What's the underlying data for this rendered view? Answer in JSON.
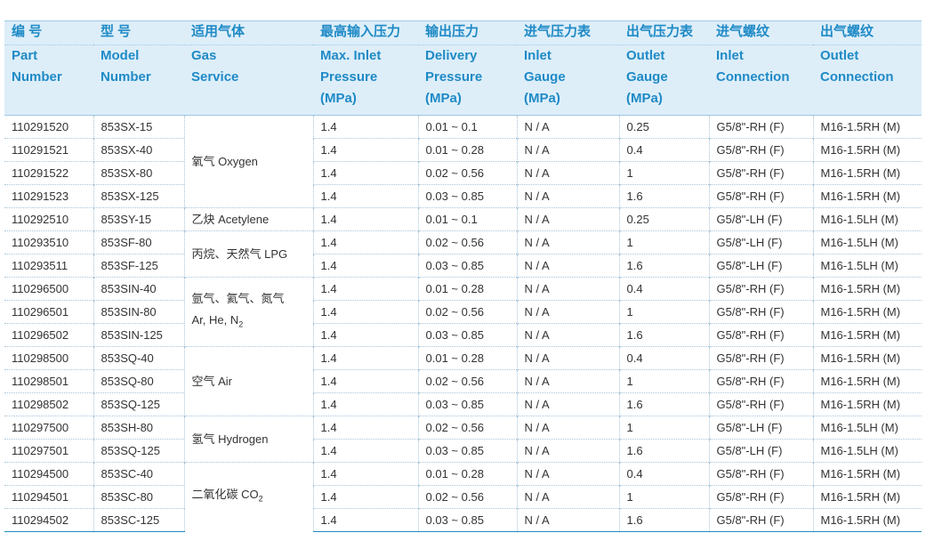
{
  "headers": [
    {
      "zh": "编 号",
      "en1": "Part",
      "en2": "Number",
      "en3": ""
    },
    {
      "zh": "型 号",
      "en1": "Model",
      "en2": "Number",
      "en3": ""
    },
    {
      "zh": "适用气体",
      "en1": "Gas",
      "en2": "Service",
      "en3": ""
    },
    {
      "zh": "最高输入压力",
      "en1": "Max. Inlet",
      "en2": "Pressure",
      "en3": "(MPa)"
    },
    {
      "zh": "输出压力",
      "en1": "Delivery",
      "en2": "Pressure",
      "en3": "(MPa)"
    },
    {
      "zh": "进气压力表",
      "en1": "Inlet",
      "en2": "Gauge",
      "en3": "(MPa)"
    },
    {
      "zh": "出气压力表",
      "en1": "Outlet",
      "en2": "Gauge",
      "en3": "(MPa)"
    },
    {
      "zh": "进气螺纹",
      "en1": "Inlet",
      "en2": "Connection",
      "en3": ""
    },
    {
      "zh": "出气螺纹",
      "en1": "Outlet",
      "en2": "Connection",
      "en3": ""
    }
  ],
  "gas_groups": [
    {
      "line1": "氧气  Oxygen",
      "line2": "",
      "sub": "",
      "rows": 4
    },
    {
      "line1": "乙炔 Acetylene",
      "line2": "",
      "sub": "",
      "rows": 1
    },
    {
      "line1": "丙烷、天然气 LPG",
      "line2": "",
      "sub": "",
      "rows": 2
    },
    {
      "line1": "氩气、氦气、氮气",
      "line2": "Ar, He, N",
      "sub": "2",
      "rows": 3
    },
    {
      "line1": "空气 Air",
      "line2": "",
      "sub": "",
      "rows": 3
    },
    {
      "line1": "氢气 Hydrogen",
      "line2": "",
      "sub": "",
      "rows": 2
    },
    {
      "line1": "二氧化碳 CO",
      "line2": "",
      "sub": "2",
      "rows": 3
    }
  ],
  "rows": [
    {
      "part": "110291520",
      "model": "853SX-15",
      "max_inlet": "1.4",
      "delivery": "0.01 ~ 0.1",
      "inlet_gauge": "N / A",
      "outlet_gauge": "0.25",
      "inlet_conn": "G5/8\"-RH (F)",
      "outlet_conn": "M16-1.5RH (M)"
    },
    {
      "part": "110291521",
      "model": "853SX-40",
      "max_inlet": "1.4",
      "delivery": "0.01 ~ 0.28",
      "inlet_gauge": "N / A",
      "outlet_gauge": "0.4",
      "inlet_conn": "G5/8\"-RH (F)",
      "outlet_conn": "M16-1.5RH (M)"
    },
    {
      "part": "110291522",
      "model": "853SX-80",
      "max_inlet": "1.4",
      "delivery": "0.02 ~ 0.56",
      "inlet_gauge": "N / A",
      "outlet_gauge": "1",
      "inlet_conn": "G5/8\"-RH (F)",
      "outlet_conn": "M16-1.5RH (M)"
    },
    {
      "part": "110291523",
      "model": "853SX-125",
      "max_inlet": "1.4",
      "delivery": "0.03 ~ 0.85",
      "inlet_gauge": "N / A",
      "outlet_gauge": "1.6",
      "inlet_conn": "G5/8\"-RH (F)",
      "outlet_conn": "M16-1.5RH (M)"
    },
    {
      "part": "110292510",
      "model": "853SY-15",
      "max_inlet": "1.4",
      "delivery": "0.01 ~ 0.1",
      "inlet_gauge": "N / A",
      "outlet_gauge": "0.25",
      "inlet_conn": "G5/8\"-LH (F)",
      "outlet_conn": "M16-1.5LH (M)"
    },
    {
      "part": "110293510",
      "model": "853SF-80",
      "max_inlet": "1.4",
      "delivery": "0.02 ~ 0.56",
      "inlet_gauge": "N / A",
      "outlet_gauge": "1",
      "inlet_conn": "G5/8\"-LH (F)",
      "outlet_conn": "M16-1.5LH (M)"
    },
    {
      "part": "110293511",
      "model": "853SF-125",
      "max_inlet": "1.4",
      "delivery": "0.03 ~ 0.85",
      "inlet_gauge": "N / A",
      "outlet_gauge": "1.6",
      "inlet_conn": "G5/8\"-LH (F)",
      "outlet_conn": "M16-1.5LH (M)"
    },
    {
      "part": "110296500",
      "model": "853SIN-40",
      "max_inlet": "1.4",
      "delivery": "0.01 ~ 0.28",
      "inlet_gauge": "N / A",
      "outlet_gauge": "0.4",
      "inlet_conn": "G5/8\"-RH (F)",
      "outlet_conn": "M16-1.5RH (M)"
    },
    {
      "part": "110296501",
      "model": "853SIN-80",
      "max_inlet": "1.4",
      "delivery": "0.02 ~ 0.56",
      "inlet_gauge": "N / A",
      "outlet_gauge": "1",
      "inlet_conn": "G5/8\"-RH (F)",
      "outlet_conn": "M16-1.5RH (M)"
    },
    {
      "part": "110296502",
      "model": "853SIN-125",
      "max_inlet": "1.4",
      "delivery": "0.03 ~ 0.85",
      "inlet_gauge": "N / A",
      "outlet_gauge": "1.6",
      "inlet_conn": "G5/8\"-RH (F)",
      "outlet_conn": "M16-1.5RH (M)"
    },
    {
      "part": "110298500",
      "model": "853SQ-40",
      "max_inlet": "1.4",
      "delivery": "0.01 ~ 0.28",
      "inlet_gauge": "N / A",
      "outlet_gauge": "0.4",
      "inlet_conn": "G5/8\"-RH (F)",
      "outlet_conn": "M16-1.5RH (M)"
    },
    {
      "part": "110298501",
      "model": "853SQ-80",
      "max_inlet": "1.4",
      "delivery": "0.02 ~ 0.56",
      "inlet_gauge": "N / A",
      "outlet_gauge": "1",
      "inlet_conn": "G5/8\"-RH (F)",
      "outlet_conn": "M16-1.5RH (M)"
    },
    {
      "part": "110298502",
      "model": "853SQ-125",
      "max_inlet": "1.4",
      "delivery": "0.03 ~ 0.85",
      "inlet_gauge": "N / A",
      "outlet_gauge": "1.6",
      "inlet_conn": "G5/8\"-RH (F)",
      "outlet_conn": "M16-1.5RH (M)"
    },
    {
      "part": "110297500",
      "model": "853SH-80",
      "max_inlet": "1.4",
      "delivery": "0.02 ~ 0.56",
      "inlet_gauge": "N / A",
      "outlet_gauge": "1",
      "inlet_conn": "G5/8\"-LH (F)",
      "outlet_conn": "M16-1.5LH (M)"
    },
    {
      "part": "110297501",
      "model": "853SQ-125",
      "max_inlet": "1.4",
      "delivery": "0.03 ~ 0.85",
      "inlet_gauge": "N / A",
      "outlet_gauge": "1.6",
      "inlet_conn": "G5/8\"-LH (F)",
      "outlet_conn": "M16-1.5LH (M)"
    },
    {
      "part": "110294500",
      "model": "853SC-40",
      "max_inlet": "1.4",
      "delivery": "0.01 ~ 0.28",
      "inlet_gauge": "N / A",
      "outlet_gauge": "0.4",
      "inlet_conn": "G5/8\"-RH (F)",
      "outlet_conn": "M16-1.5RH (M)"
    },
    {
      "part": "110294501",
      "model": "853SC-80",
      "max_inlet": "1.4",
      "delivery": "0.02 ~ 0.56",
      "inlet_gauge": "N / A",
      "outlet_gauge": "1",
      "inlet_conn": "G5/8\"-RH (F)",
      "outlet_conn": "M16-1.5RH (M)"
    },
    {
      "part": "110294502",
      "model": "853SC-125",
      "max_inlet": "1.4",
      "delivery": "0.03 ~ 0.85",
      "inlet_gauge": "N / A",
      "outlet_gauge": "1.6",
      "inlet_conn": "G5/8\"-RH (F)",
      "outlet_conn": "M16-1.5RH (M)"
    }
  ],
  "colors": {
    "header_bg": "#ddeef9",
    "header_text": "#1f8ac6",
    "body_text": "#333333"
  }
}
